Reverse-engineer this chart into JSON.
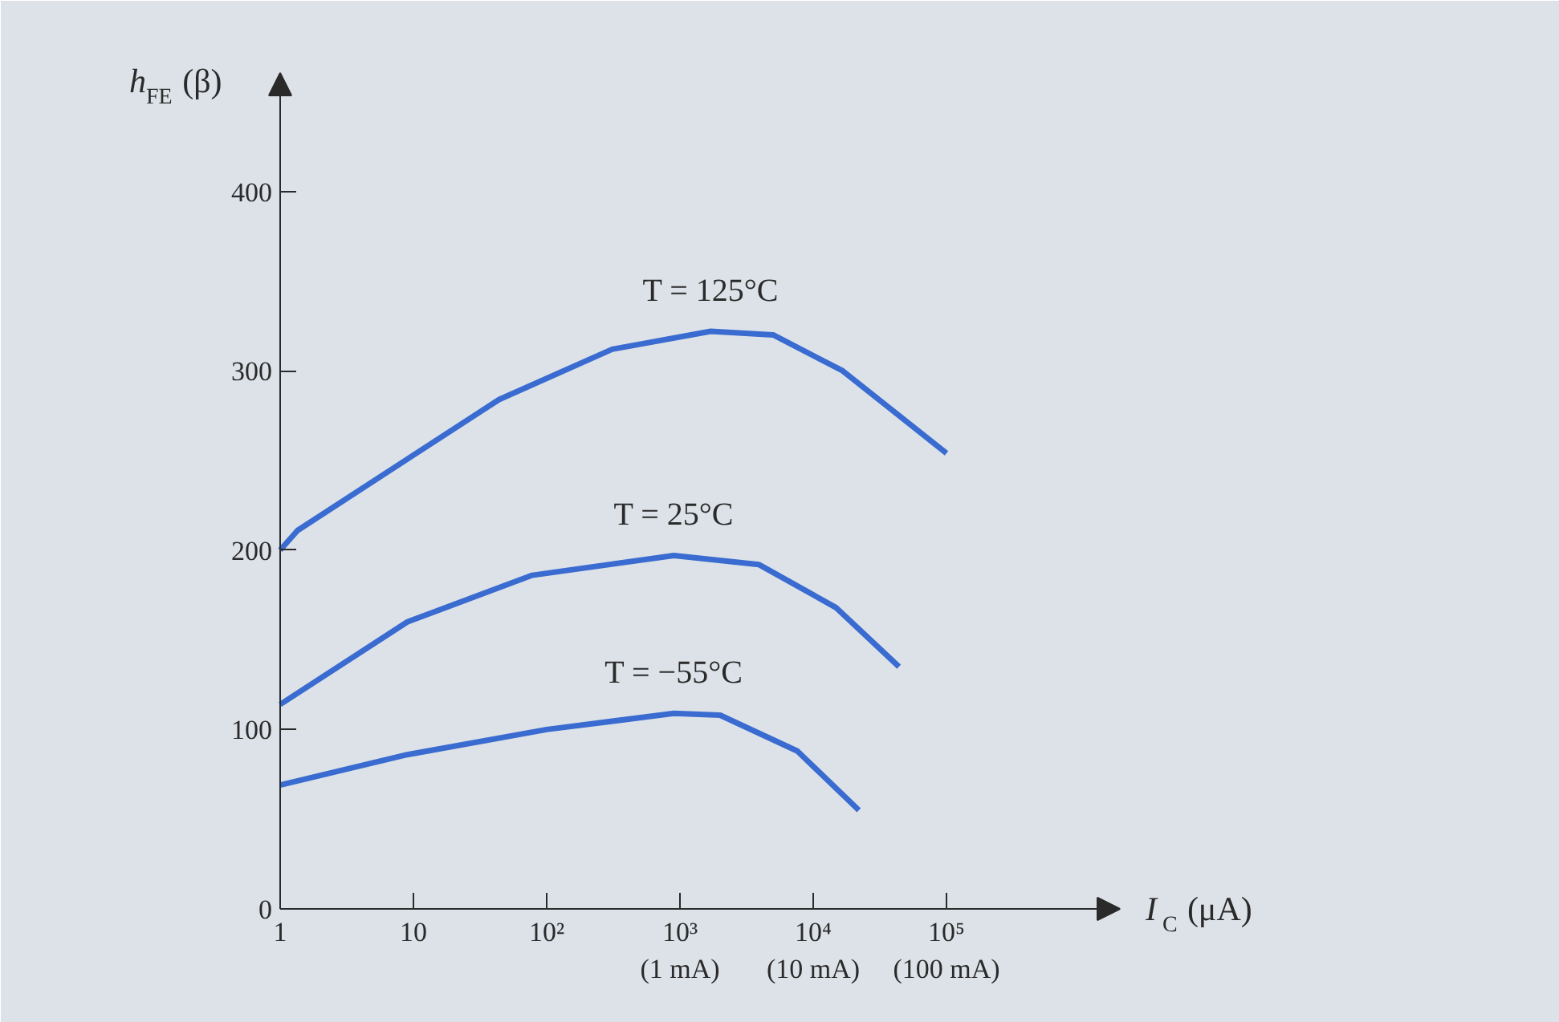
{
  "chart_data": {
    "type": "line",
    "xlabel": "I$_{C}$ (μA)",
    "ylabel": "h$_{FE}$ (β)",
    "log": "x",
    "xlim": [
      1,
      2000000
    ],
    "ylim": [
      0,
      466
    ],
    "xticks": [
      1,
      10,
      {
        "value": 100,
        "label": "10²"
      },
      {
        "value": 1000,
        "label": "10³\n(1 mA)"
      },
      {
        "value": 10000,
        "label": "10⁴\n(10 mA)"
      },
      {
        "value": 100000,
        "label": "10⁵\n(100 mA)"
      }
    ],
    "yticks": [
      0,
      100,
      200,
      300,
      400
    ],
    "grid": false,
    "marker": "none",
    "line_style": "solid",
    "series": [
      {
        "name": "T = 125°C",
        "color": "#3a6bd0",
        "x": [
          1,
          1.35,
          44,
          310,
          1700,
          5000,
          16600,
          100000
        ],
        "values": [
          200,
          211,
          284,
          312,
          322,
          320,
          300,
          254
        ]
      },
      {
        "name": "T = 25°C",
        "color": "#3a6bd0",
        "x": [
          1,
          9,
          78,
          900,
          3900,
          14800,
          44000
        ],
        "values": [
          114,
          160,
          186,
          197,
          192,
          168,
          135
        ]
      },
      {
        "name": "T = −55°C",
        "color": "#3a6bd0",
        "x": [
          1,
          9,
          100,
          900,
          2000,
          7600,
          22000
        ],
        "values": [
          69,
          86,
          100,
          109,
          108,
          88,
          55
        ]
      }
    ]
  }
}
